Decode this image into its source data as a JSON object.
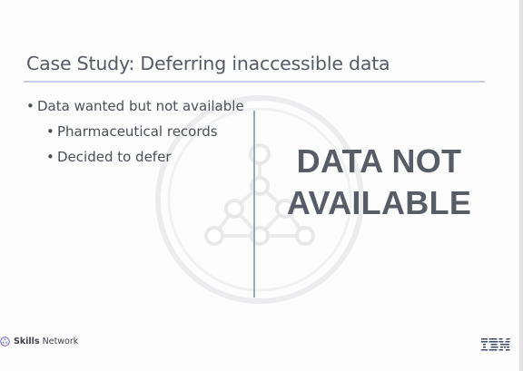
{
  "slide": {
    "title": "Case Study: Deferring inaccessible data",
    "bullets": [
      {
        "text": "Data wanted but not available",
        "sub_bullets": [
          "Pharmaceutical records",
          "Decided to defer"
        ]
      }
    ],
    "callout_lines": [
      "DATA NOT",
      "AVAILABLE"
    ]
  },
  "footer": {
    "brand_bold": "Skills",
    "brand_rest": " Network",
    "logo_icon": "skills-network-logo-icon",
    "company_logo": "IBM"
  },
  "colors": {
    "title_text": "#555a64",
    "body_text": "#4a4f58",
    "callout_text": "#575c66",
    "title_rule": "#c9cde6",
    "divider": "#9aa9ba",
    "ibm_blue": "#3c4a6b"
  }
}
